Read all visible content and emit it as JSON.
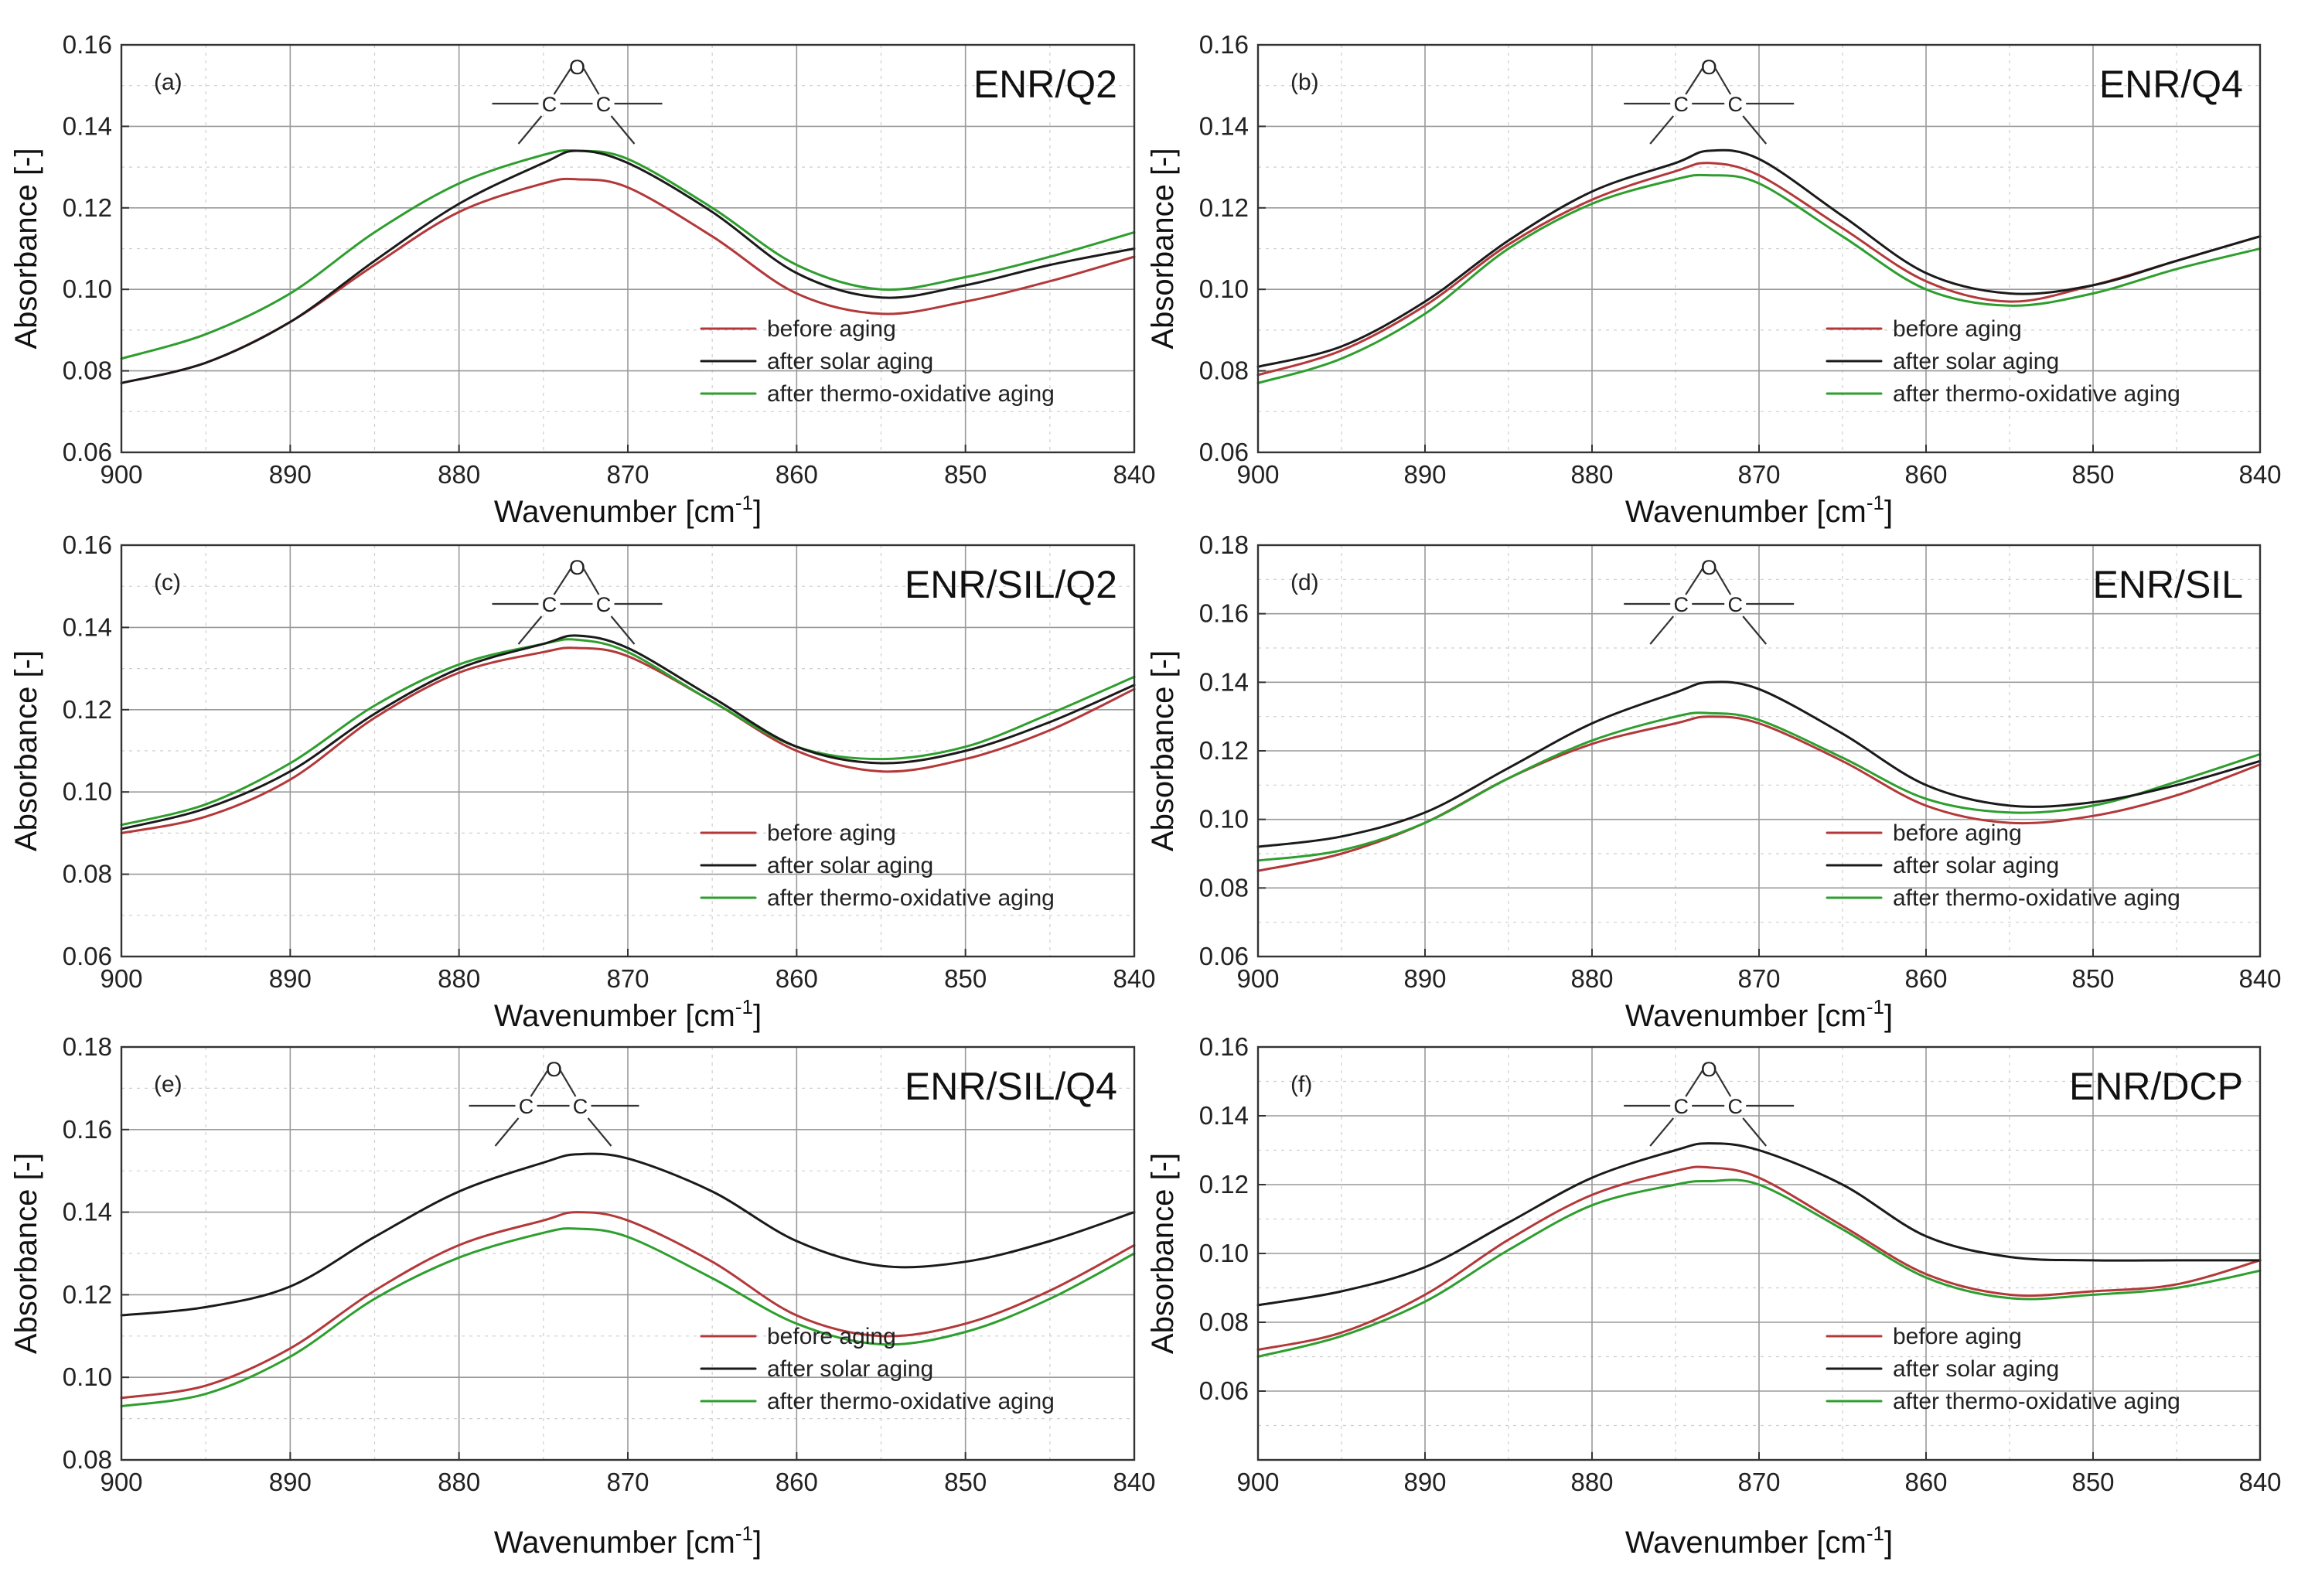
{
  "colors": {
    "before": "#b3383a",
    "solar": "#1a1a1a",
    "thermo": "#2e9e2e"
  },
  "chart_data": [
    {
      "type": "line",
      "panel": "(a)",
      "title": "ENR/Q2",
      "xlabel": "Wavenumber [cm",
      "xlabel_sup": "-1",
      "xlabel_end": "]",
      "ylabel": "Absorbance [-]",
      "xlim": [
        900,
        840
      ],
      "ylim": [
        0.06,
        0.16
      ],
      "xticks": [
        "900",
        "890",
        "880",
        "870",
        "860",
        "850",
        "840"
      ],
      "yticks": [
        "0.06",
        "0.08",
        "0.10",
        "0.12",
        "0.14",
        "0.16"
      ],
      "molecule": {
        "o": "O",
        "c1": "C",
        "c2": "C"
      },
      "x": [
        900,
        895,
        890,
        885,
        880,
        875,
        873,
        870,
        865,
        860,
        855,
        850,
        845,
        840
      ],
      "series": [
        {
          "name": "before aging",
          "values": [
            0.077,
            0.082,
            0.092,
            0.106,
            0.119,
            0.126,
            0.127,
            0.125,
            0.113,
            0.099,
            0.094,
            0.097,
            0.102,
            0.108
          ]
        },
        {
          "name": "after solar aging",
          "values": [
            0.077,
            0.082,
            0.092,
            0.107,
            0.121,
            0.131,
            0.134,
            0.131,
            0.119,
            0.104,
            0.098,
            0.101,
            0.106,
            0.11
          ]
        },
        {
          "name": "after thermo-oxidative aging",
          "values": [
            0.083,
            0.089,
            0.099,
            0.114,
            0.126,
            0.133,
            0.134,
            0.132,
            0.12,
            0.106,
            0.1,
            0.103,
            0.108,
            0.114
          ]
        }
      ],
      "legend_position": "bottom-right"
    },
    {
      "type": "line",
      "panel": "(b)",
      "title": "ENR/Q4",
      "xlabel": "Wavenumber [cm",
      "xlabel_sup": "-1",
      "xlabel_end": "]",
      "ylabel": "Absorbance [-]",
      "xlim": [
        900,
        840
      ],
      "ylim": [
        0.06,
        0.16
      ],
      "xticks": [
        "900",
        "890",
        "880",
        "870",
        "860",
        "850",
        "840"
      ],
      "yticks": [
        "0.06",
        "0.08",
        "0.10",
        "0.12",
        "0.14",
        "0.16"
      ],
      "molecule": {
        "o": "O",
        "c1": "C",
        "c2": "C"
      },
      "x": [
        900,
        895,
        890,
        885,
        880,
        875,
        873,
        870,
        865,
        860,
        855,
        850,
        845,
        840
      ],
      "series": [
        {
          "name": "before aging",
          "values": [
            0.079,
            0.085,
            0.096,
            0.111,
            0.122,
            0.129,
            0.131,
            0.128,
            0.115,
            0.102,
            0.097,
            0.101,
            0.107,
            0.113
          ]
        },
        {
          "name": "after solar aging",
          "values": [
            0.081,
            0.086,
            0.097,
            0.112,
            0.124,
            0.131,
            0.134,
            0.132,
            0.118,
            0.104,
            0.099,
            0.101,
            0.107,
            0.113
          ]
        },
        {
          "name": "after thermo-oxidative aging",
          "values": [
            0.077,
            0.083,
            0.094,
            0.11,
            0.121,
            0.127,
            0.128,
            0.126,
            0.113,
            0.1,
            0.096,
            0.099,
            0.105,
            0.11
          ]
        }
      ],
      "legend_position": "bottom-right"
    },
    {
      "type": "line",
      "panel": "(c)",
      "title": "ENR/SIL/Q2",
      "xlabel": "Wavenumber [cm",
      "xlabel_sup": "-1",
      "xlabel_end": "]",
      "ylabel": "Absorbance [-]",
      "xlim": [
        900,
        840
      ],
      "ylim": [
        0.06,
        0.16
      ],
      "xticks": [
        "900",
        "890",
        "880",
        "870",
        "860",
        "850",
        "840"
      ],
      "yticks": [
        "0.06",
        "0.08",
        "0.10",
        "0.12",
        "0.14",
        "0.16"
      ],
      "molecule": {
        "o": "O",
        "c1": "C",
        "c2": "C"
      },
      "x": [
        900,
        895,
        890,
        885,
        880,
        875,
        873,
        870,
        865,
        860,
        855,
        850,
        845,
        840
      ],
      "series": [
        {
          "name": "before aging",
          "values": [
            0.09,
            0.094,
            0.103,
            0.118,
            0.129,
            0.134,
            0.135,
            0.133,
            0.122,
            0.11,
            0.105,
            0.108,
            0.115,
            0.125
          ]
        },
        {
          "name": "after solar aging",
          "values": [
            0.091,
            0.096,
            0.105,
            0.119,
            0.13,
            0.136,
            0.138,
            0.135,
            0.123,
            0.111,
            0.107,
            0.11,
            0.117,
            0.126
          ]
        },
        {
          "name": "after thermo-oxidative aging",
          "values": [
            0.092,
            0.097,
            0.107,
            0.121,
            0.131,
            0.136,
            0.137,
            0.134,
            0.122,
            0.111,
            0.108,
            0.111,
            0.119,
            0.128
          ]
        }
      ],
      "legend_position": "bottom-right"
    },
    {
      "type": "line",
      "panel": "(d)",
      "title": "ENR/SIL",
      "xlabel": "Wavenumber [cm",
      "xlabel_sup": "-1",
      "xlabel_end": "]",
      "ylabel": "Absorbance [-]",
      "xlim": [
        900,
        840
      ],
      "ylim": [
        0.06,
        0.18
      ],
      "xticks": [
        "900",
        "890",
        "880",
        "870",
        "860",
        "850",
        "840"
      ],
      "yticks": [
        "0.06",
        "0.08",
        "0.10",
        "0.12",
        "0.14",
        "0.16",
        "0.18"
      ],
      "molecule": {
        "o": "O",
        "c1": "C",
        "c2": "C"
      },
      "x": [
        900,
        895,
        890,
        885,
        880,
        875,
        873,
        870,
        865,
        860,
        855,
        850,
        845,
        840
      ],
      "series": [
        {
          "name": "before aging",
          "values": [
            0.085,
            0.09,
            0.099,
            0.112,
            0.122,
            0.128,
            0.13,
            0.128,
            0.117,
            0.104,
            0.099,
            0.101,
            0.107,
            0.116
          ]
        },
        {
          "name": "after solar aging",
          "values": [
            0.092,
            0.095,
            0.102,
            0.115,
            0.128,
            0.137,
            0.14,
            0.138,
            0.125,
            0.11,
            0.104,
            0.105,
            0.11,
            0.117
          ]
        },
        {
          "name": "after thermo-oxidative aging",
          "values": [
            0.088,
            0.091,
            0.099,
            0.112,
            0.123,
            0.13,
            0.131,
            0.129,
            0.118,
            0.106,
            0.102,
            0.104,
            0.111,
            0.119
          ]
        }
      ],
      "legend_position": "bottom-right"
    },
    {
      "type": "line",
      "panel": "(e)",
      "title": "ENR/SIL/Q4",
      "xlabel": "Wavenumber [cm",
      "xlabel_sup": "-1",
      "xlabel_end": "]",
      "ylabel": "Absorbance [-]",
      "xlim": [
        900,
        840
      ],
      "ylim": [
        0.08,
        0.18
      ],
      "xticks": [
        "900",
        "890",
        "880",
        "870",
        "860",
        "850",
        "840"
      ],
      "yticks": [
        "0.08",
        "0.10",
        "0.12",
        "0.14",
        "0.16",
        "0.18"
      ],
      "molecule": {
        "o": "O",
        "c1": "C",
        "c2": "C"
      },
      "x": [
        900,
        895,
        890,
        885,
        880,
        875,
        873,
        870,
        865,
        860,
        855,
        850,
        845,
        840
      ],
      "series": [
        {
          "name": "before aging",
          "values": [
            0.095,
            0.098,
            0.107,
            0.121,
            0.132,
            0.138,
            0.14,
            0.138,
            0.128,
            0.115,
            0.11,
            0.113,
            0.121,
            0.132
          ]
        },
        {
          "name": "after solar aging",
          "values": [
            0.115,
            0.117,
            0.122,
            0.134,
            0.145,
            0.152,
            0.154,
            0.153,
            0.145,
            0.133,
            0.127,
            0.128,
            0.133,
            0.14
          ]
        },
        {
          "name": "after thermo-oxidative aging",
          "values": [
            0.093,
            0.096,
            0.105,
            0.119,
            0.129,
            0.135,
            0.136,
            0.134,
            0.124,
            0.113,
            0.108,
            0.111,
            0.119,
            0.13
          ]
        }
      ],
      "legend_position": "bottom-right"
    },
    {
      "type": "line",
      "panel": "(f)",
      "title": "ENR/DCP",
      "xlabel": "Wavenumber [cm",
      "xlabel_sup": "-1",
      "xlabel_end": "]",
      "ylabel": "Absorbance [-]",
      "xlim": [
        900,
        840
      ],
      "ylim": [
        0.04,
        0.16
      ],
      "xticks": [
        "900",
        "890",
        "880",
        "870",
        "860",
        "850",
        "840"
      ],
      "yticks": [
        "0.06",
        "0.08",
        "0.10",
        "0.12",
        "0.14",
        "0.16"
      ],
      "molecule": {
        "o": "O",
        "c1": "C",
        "c2": "C"
      },
      "x": [
        900,
        895,
        890,
        885,
        880,
        875,
        873,
        870,
        865,
        860,
        855,
        850,
        845,
        840
      ],
      "series": [
        {
          "name": "before aging",
          "values": [
            0.072,
            0.077,
            0.088,
            0.104,
            0.117,
            0.124,
            0.125,
            0.122,
            0.108,
            0.094,
            0.088,
            0.089,
            0.091,
            0.098
          ]
        },
        {
          "name": "after solar aging",
          "values": [
            0.085,
            0.089,
            0.096,
            0.109,
            0.122,
            0.13,
            0.132,
            0.13,
            0.12,
            0.105,
            0.099,
            0.098,
            0.098,
            0.098
          ]
        },
        {
          "name": "after thermo-oxidative aging",
          "values": [
            0.07,
            0.076,
            0.086,
            0.101,
            0.114,
            0.12,
            0.121,
            0.12,
            0.107,
            0.093,
            0.087,
            0.088,
            0.09,
            0.095
          ]
        }
      ],
      "legend_position": "bottom-right"
    }
  ]
}
